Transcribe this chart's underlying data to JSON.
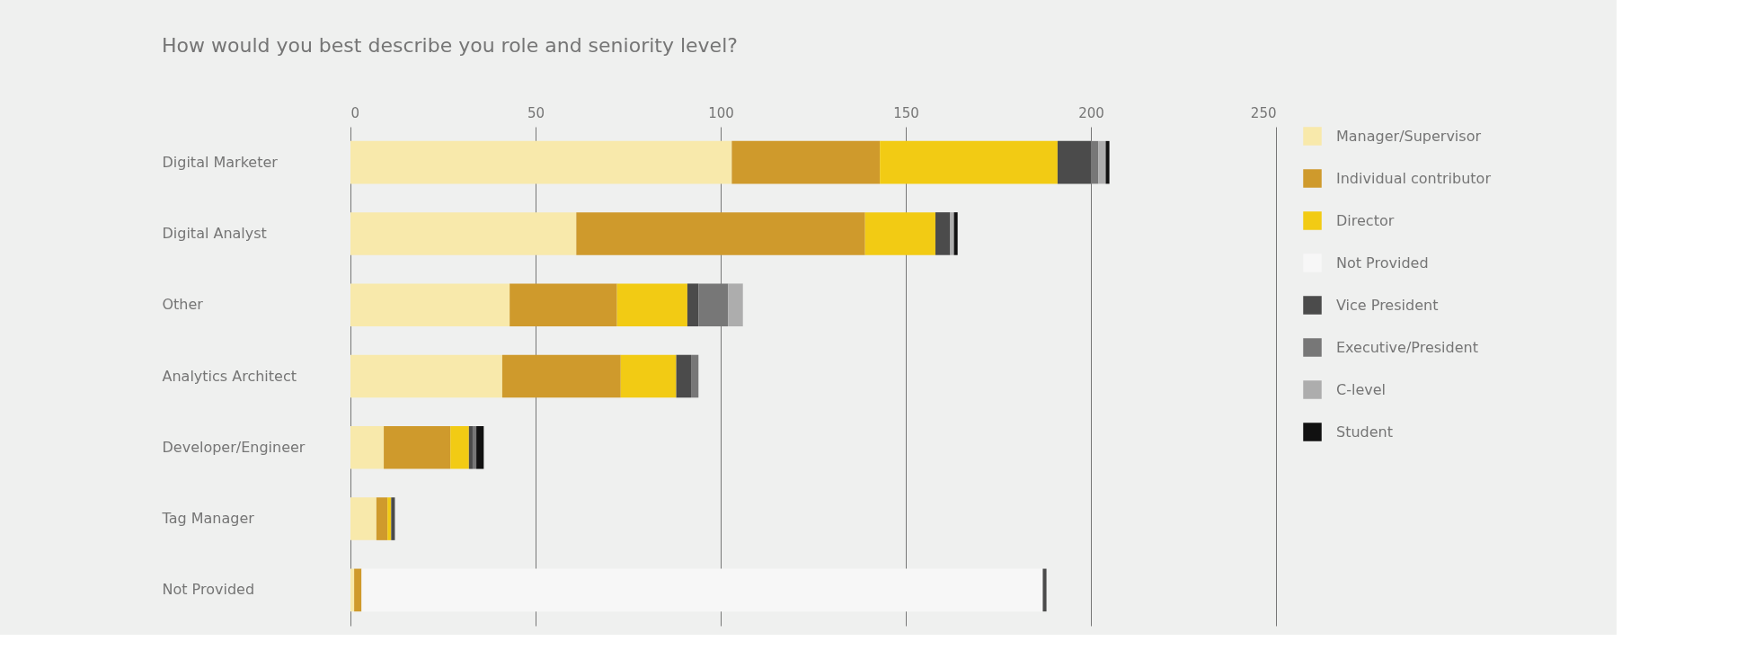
{
  "chart_data": {
    "type": "bar",
    "orientation": "horizontal",
    "stacked": true,
    "title": "How would you best describe you role and seniority level?",
    "categories": [
      "Digital Marketer",
      "Digital Analyst",
      "Other",
      "Analytics Architect",
      "Developer/Engineer",
      "Tag Manager",
      "Not Provided"
    ],
    "series": [
      {
        "name": "Manager/Supervisor",
        "color": "#f8e9ab",
        "values": [
          103,
          61,
          43,
          41,
          9,
          7,
          1
        ]
      },
      {
        "name": "Individual contributor",
        "color": "#cf9a2c",
        "values": [
          40,
          78,
          29,
          32,
          18,
          3,
          2
        ]
      },
      {
        "name": "Director",
        "color": "#f2cb14",
        "values": [
          48,
          19,
          19,
          15,
          5,
          1,
          null
        ]
      },
      {
        "name": "Not Provided",
        "color": "#f7f7f7",
        "values": [
          null,
          null,
          null,
          null,
          null,
          null,
          184
        ]
      },
      {
        "name": "Vice President",
        "color": "#4b4b4b",
        "values": [
          9,
          4,
          3,
          4,
          1,
          1,
          1
        ]
      },
      {
        "name": "Executive/President",
        "color": "#777777",
        "values": [
          2,
          null,
          8,
          2,
          1,
          null,
          null
        ]
      },
      {
        "name": "C-level",
        "color": "#adadad",
        "values": [
          2,
          1,
          4,
          null,
          null,
          null,
          null
        ]
      },
      {
        "name": "Student",
        "color": "#111111",
        "values": [
          1,
          1,
          null,
          null,
          2,
          null,
          null
        ]
      }
    ],
    "xlim": [
      0,
      250
    ],
    "xticks": [
      0,
      50,
      100,
      150,
      200,
      250
    ],
    "grid": "x",
    "legend": "right"
  }
}
